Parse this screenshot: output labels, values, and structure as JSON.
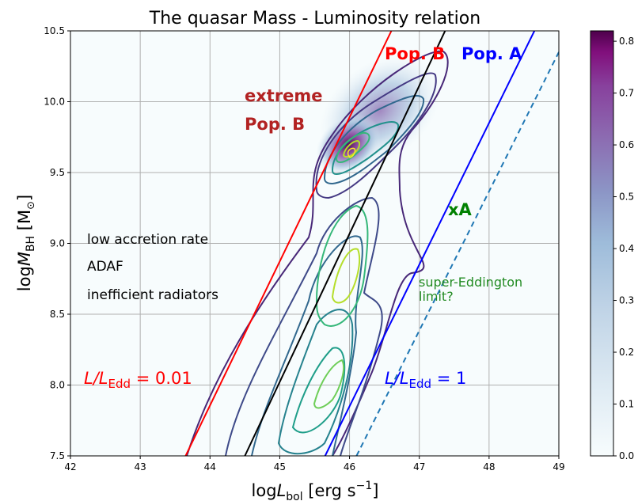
{
  "chart_data": {
    "type": "contour",
    "title": "The quasar Mass - Luminosity relation",
    "xlabel": {
      "pre": "log",
      "var": "L",
      "sub": "bol",
      "unit": " [erg s",
      "sup": "−1",
      "close": "]"
    },
    "ylabel": {
      "pre": "log",
      "var": "M",
      "sub": "BH",
      "unit": "  [M",
      "sun": "⊙",
      "close": "]"
    },
    "xlim": [
      42,
      49
    ],
    "ylim": [
      7.5,
      10.5
    ],
    "xticks": [
      "42",
      "43",
      "44",
      "45",
      "46",
      "47",
      "48",
      "49"
    ],
    "yticks": [
      "7.5",
      "8.0",
      "8.5",
      "9.0",
      "9.5",
      "10.0",
      "10.5"
    ],
    "grid": true,
    "colorbar": {
      "min": 0.0,
      "max": 0.82,
      "ticks": [
        "0.0",
        "0.1",
        "0.2",
        "0.3",
        "0.4",
        "0.5",
        "0.6",
        "0.7",
        "0.8"
      ],
      "low_color": "#f7fcfd",
      "mid_color": "#8c96c6",
      "high_color": "#4d004b"
    },
    "reference_lines": [
      {
        "name": "L/LEdd = 0.01",
        "color": "#ff0000",
        "style": "solid",
        "points": [
          [
            43.65,
            7.5
          ],
          [
            46.6,
            10.5
          ]
        ]
      },
      {
        "name": "Pop A / Pop B boundary",
        "color": "#000000",
        "style": "solid",
        "points": [
          [
            44.5,
            7.5
          ],
          [
            47.37,
            10.5
          ]
        ]
      },
      {
        "name": "L/LEdd = 1",
        "color": "#0000ff",
        "style": "solid",
        "points": [
          [
            45.65,
            7.5
          ],
          [
            48.65,
            10.5
          ]
        ]
      },
      {
        "name": "super-Eddington limit",
        "color": "#1f77b4",
        "style": "dashed",
        "points": [
          [
            46.1,
            7.5
          ],
          [
            49.0,
            10.35
          ]
        ]
      }
    ],
    "density_peaks": [
      {
        "x": 46.1,
        "y": 9.65,
        "label": "upper peak"
      },
      {
        "x": 46.1,
        "y": 8.75,
        "label": "middle peak"
      },
      {
        "x": 45.9,
        "y": 8.0,
        "label": "lower peak"
      }
    ],
    "annotations": {
      "pop_b": "Pop. B",
      "pop_a": "Pop. A",
      "extreme_1": "extreme",
      "extreme_2": "Pop. B",
      "xa": "xA",
      "low_1": "low accretion rate",
      "low_2": "ADAF",
      "low_3": "inefficient radiators",
      "super_1": "super-Eddington",
      "super_2": "limit?",
      "edd001_var": "L/L",
      "edd001_sub": "Edd",
      "edd001_val": " = 0.01",
      "edd1_var": "L/L",
      "edd1_sub": "Edd",
      "edd1_val": " = 1"
    },
    "colors": {
      "pop_b": "#ff0000",
      "pop_a": "#0000ff",
      "extreme": "#b22222",
      "xa": "#008000",
      "super": "#228b22",
      "edd001": "#ff0000",
      "edd1": "#0000ff"
    }
  }
}
